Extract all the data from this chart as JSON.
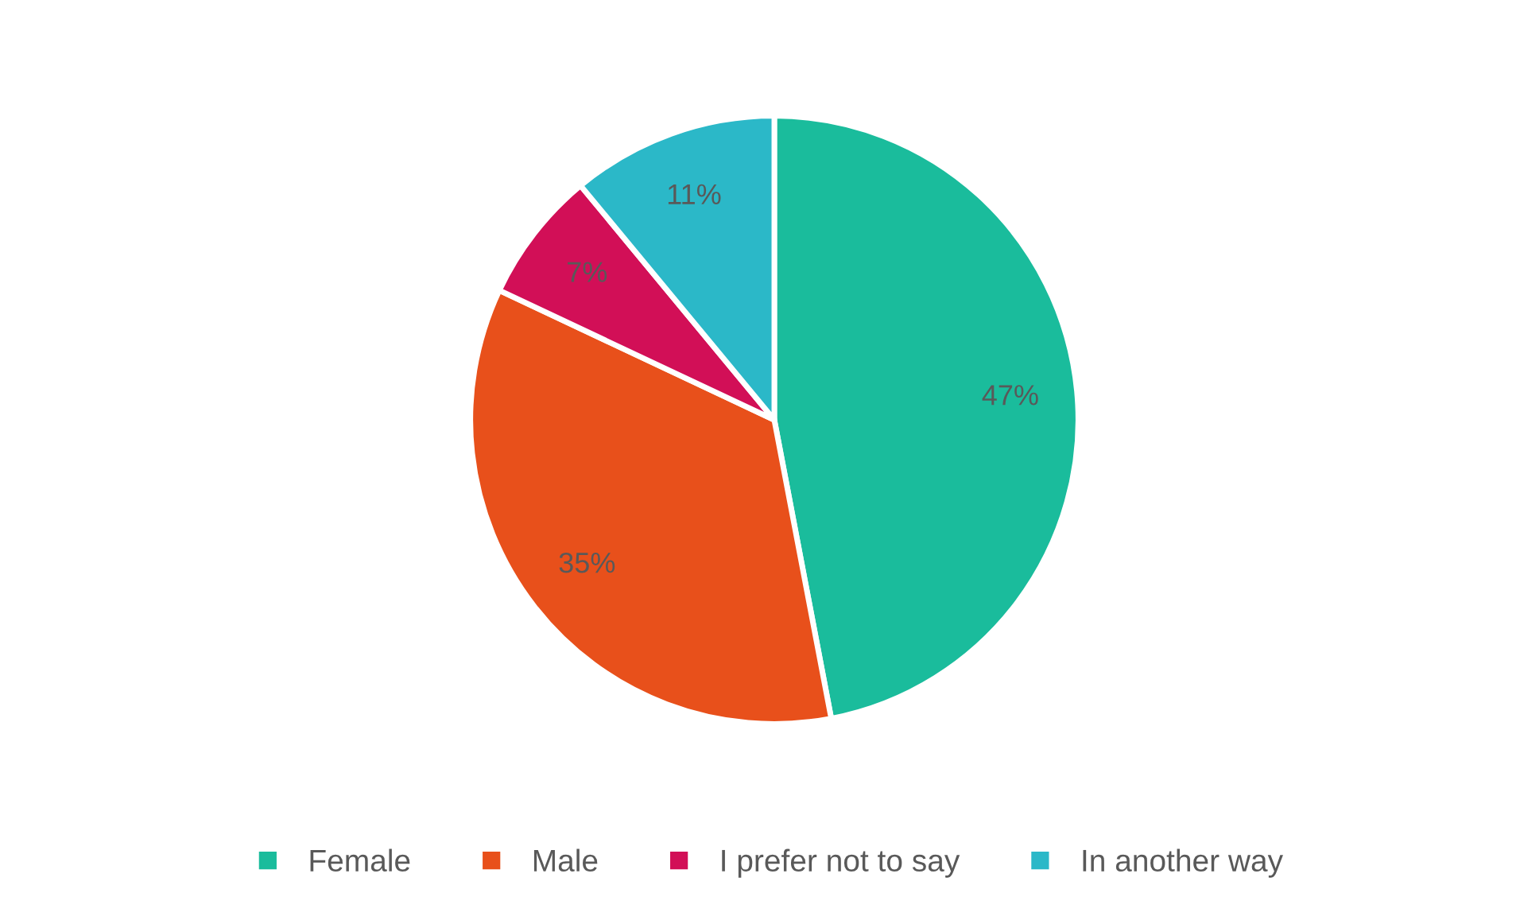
{
  "chart_data": {
    "type": "pie",
    "categories": [
      "Female",
      "Male",
      "I prefer not to say",
      "In another way"
    ],
    "values": [
      47,
      35,
      7,
      11
    ],
    "colors": [
      "#1abc9c",
      "#e8501b",
      "#d20f57",
      "#2bb8c8"
    ],
    "value_labels": [
      "47%",
      "35%",
      "7%",
      "11%"
    ],
    "legend": "bottom"
  }
}
